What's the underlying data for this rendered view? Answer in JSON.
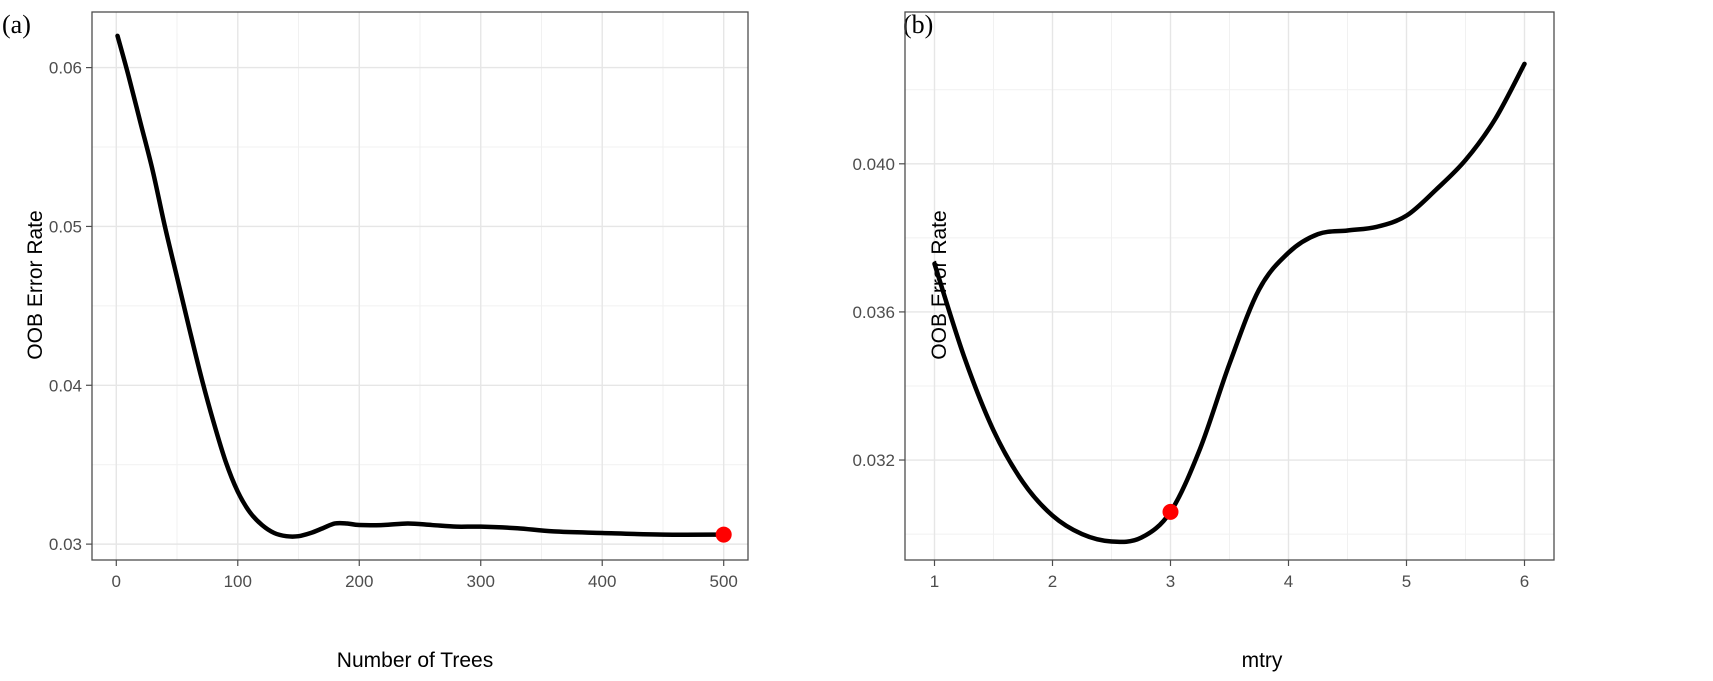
{
  "chart_data": [
    {
      "type": "line",
      "panel_label": "(a)",
      "xlabel": "Number of Trees",
      "ylabel": "OOB Error Rate",
      "xlim": [
        -20,
        520
      ],
      "ylim": [
        0.029,
        0.0635
      ],
      "xticks": [
        0,
        100,
        200,
        300,
        400,
        500
      ],
      "xtick_labels": [
        "0",
        "100",
        "200",
        "300",
        "400",
        "500"
      ],
      "yticks": [
        0.03,
        0.04,
        0.05,
        0.06
      ],
      "ytick_labels": [
        "0.03",
        "0.04",
        "0.05",
        "0.06"
      ],
      "grid": true,
      "series": [
        {
          "color": "#000000",
          "x": [
            1,
            10,
            20,
            30,
            40,
            50,
            60,
            70,
            80,
            90,
            100,
            110,
            120,
            130,
            140,
            150,
            160,
            170,
            180,
            190,
            200,
            220,
            240,
            260,
            280,
            300,
            330,
            360,
            400,
            450,
            500
          ],
          "y": [
            0.062,
            0.0595,
            0.0565,
            0.0535,
            0.05,
            0.0468,
            0.0436,
            0.0405,
            0.0377,
            0.0352,
            0.0333,
            0.032,
            0.0312,
            0.0307,
            0.0305,
            0.0305,
            0.0307,
            0.031,
            0.0313,
            0.0313,
            0.0312,
            0.0312,
            0.0313,
            0.0312,
            0.0311,
            0.0311,
            0.031,
            0.0308,
            0.0307,
            0.0306,
            0.0306
          ]
        }
      ],
      "highlight_point": {
        "x": 500,
        "y": 0.0306,
        "color": "#ff0000"
      }
    },
    {
      "type": "line",
      "panel_label": "(b)",
      "xlabel": "mtry",
      "ylabel": "OOB Error Rate",
      "xlim": [
        0.75,
        6.25
      ],
      "ylim": [
        0.0293,
        0.0441
      ],
      "xticks": [
        1,
        2,
        3,
        4,
        5,
        6
      ],
      "xtick_labels": [
        "1",
        "2",
        "3",
        "4",
        "5",
        "6"
      ],
      "yticks": [
        0.032,
        0.036,
        0.04
      ],
      "ytick_labels": [
        "0.032",
        "0.036",
        "0.040"
      ],
      "grid": true,
      "series": [
        {
          "color": "#000000",
          "x": [
            1.0,
            1.25,
            1.5,
            1.75,
            2.0,
            2.25,
            2.5,
            2.75,
            3.0,
            3.25,
            3.5,
            3.75,
            4.0,
            4.25,
            4.5,
            4.75,
            5.0,
            5.25,
            5.5,
            5.75,
            6.0
          ],
          "y": [
            0.0373,
            0.0348,
            0.0328,
            0.0314,
            0.0305,
            0.03,
            0.0298,
            0.0299,
            0.0306,
            0.0323,
            0.0346,
            0.0366,
            0.0376,
            0.0381,
            0.0382,
            0.0383,
            0.0386,
            0.0393,
            0.0401,
            0.0412,
            0.0427
          ]
        }
      ],
      "highlight_point": {
        "x": 3,
        "y": 0.0306,
        "color": "#ff0000"
      }
    }
  ]
}
